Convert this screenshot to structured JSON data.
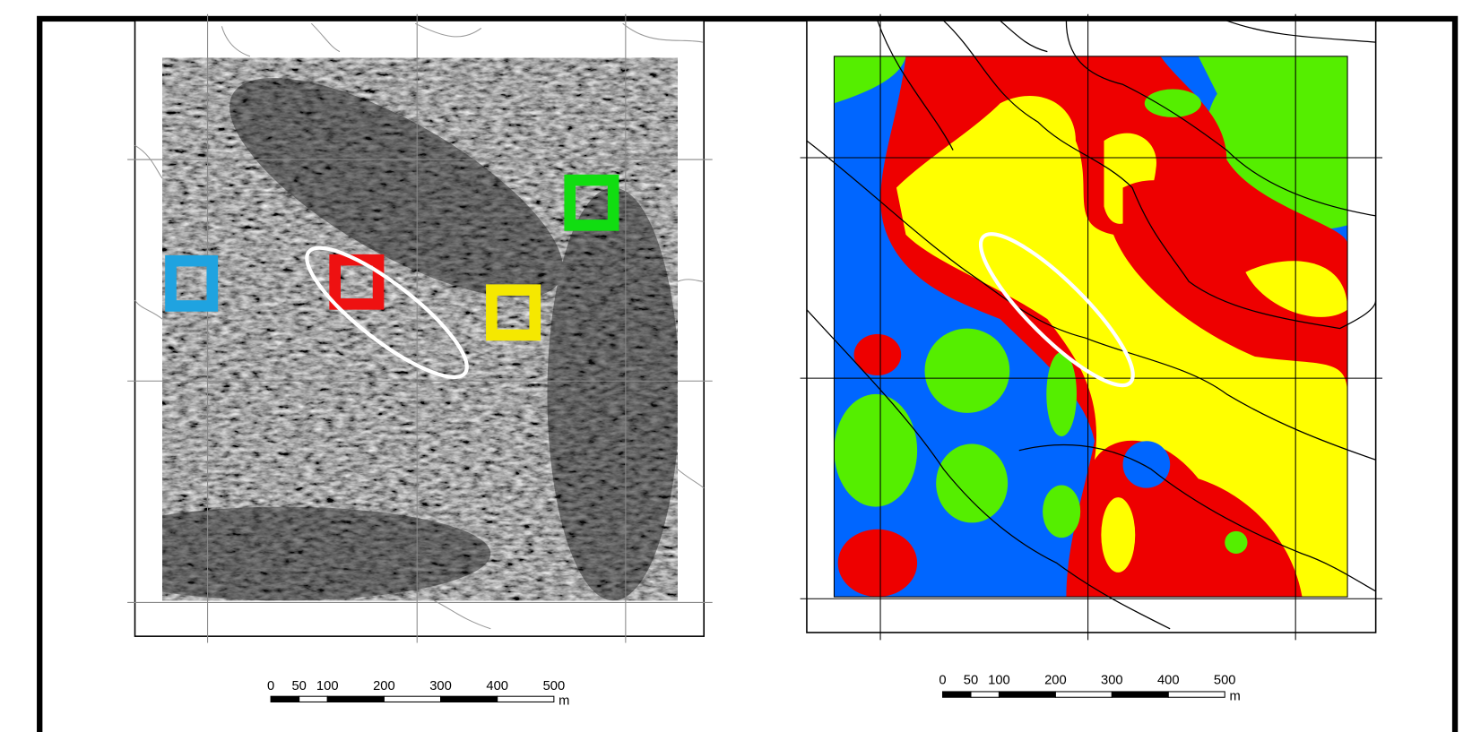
{
  "panels": [
    {
      "scale_bar": {
        "ticks": [
          0,
          50,
          100,
          200,
          300,
          400,
          500
        ],
        "unit": "m"
      }
    },
    {
      "scale_bar": {
        "ticks": [
          0,
          50,
          100,
          200,
          300,
          400,
          500
        ],
        "unit": "m"
      }
    }
  ]
}
